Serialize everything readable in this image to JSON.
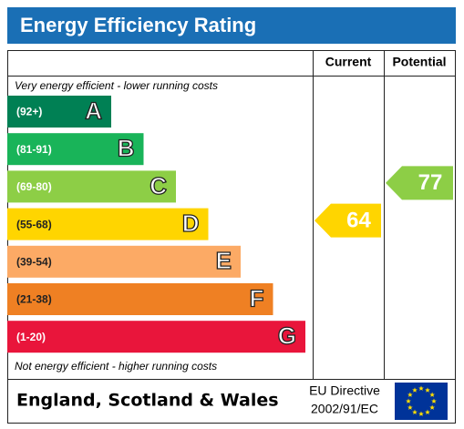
{
  "header": {
    "title": "Energy Efficiency Rating"
  },
  "columns": {
    "current": "Current",
    "potential": "Potential"
  },
  "top_note": "Very energy efficient - lower running costs",
  "bottom_note": "Not energy efficient - higher running costs",
  "bands": [
    {
      "range": "(92+)",
      "letter": "A",
      "color": "#008054"
    },
    {
      "range": "(81-91)",
      "letter": "B",
      "color": "#19b459"
    },
    {
      "range": "(69-80)",
      "letter": "C",
      "color": "#8dce46"
    },
    {
      "range": "(55-68)",
      "letter": "D",
      "color": "#ffd500"
    },
    {
      "range": "(39-54)",
      "letter": "E",
      "color": "#fcaa65"
    },
    {
      "range": "(21-38)",
      "letter": "F",
      "color": "#ef8023"
    },
    {
      "range": "(1-20)",
      "letter": "G",
      "color": "#e9153b"
    }
  ],
  "ratings": {
    "current": 64,
    "potential": 77
  },
  "footer": {
    "region": "England, Scotland & Wales",
    "directive": [
      "EU Directive",
      "2002/91/EC"
    ]
  }
}
